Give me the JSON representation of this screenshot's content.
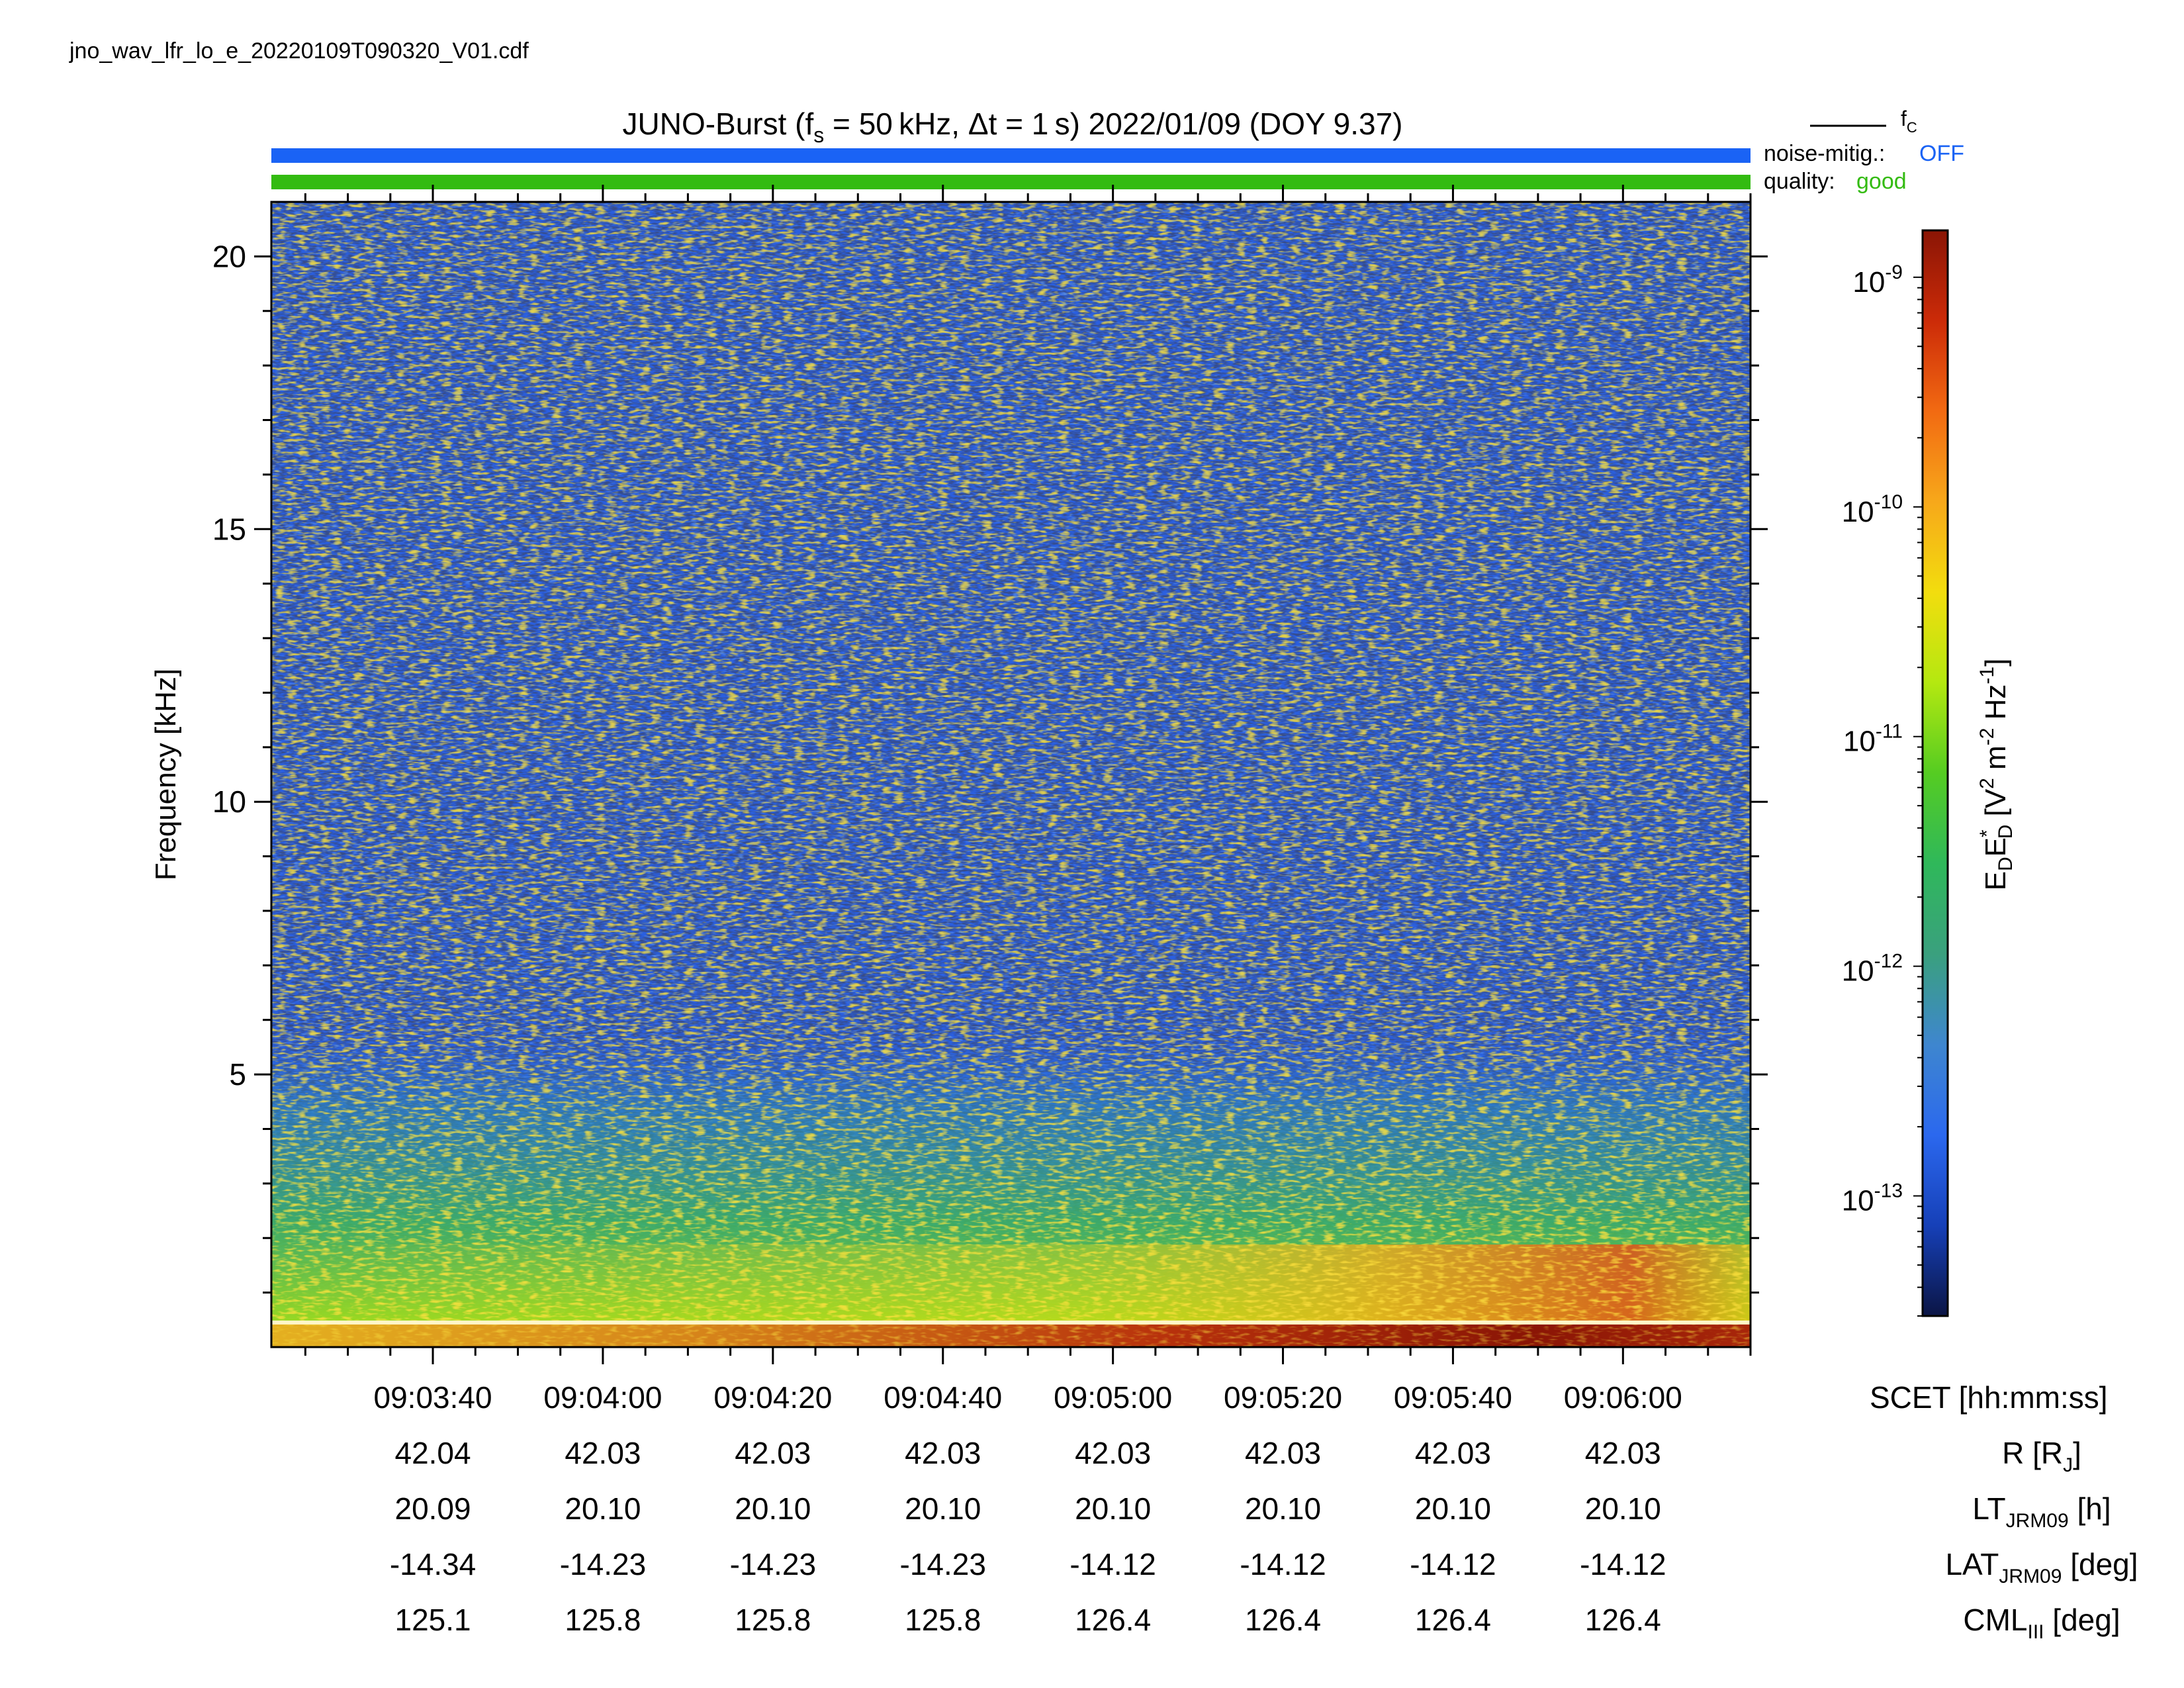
{
  "filename": "jno_wav_lfr_lo_e_20220109T090320_V01.cdf",
  "title": {
    "prefix": "JUNO-Burst (f",
    "fs_sub": "s",
    "middle": " = 50 kHz, Δt = 1 s)  2022/01/09 (DOY 9.37)"
  },
  "legend": {
    "fc_label": "f",
    "fc_sub": "C",
    "noise_label": "noise-mitig.:",
    "noise_value": "OFF",
    "noise_color": "#1a63f5",
    "quality_label": "quality:",
    "quality_value": "good",
    "quality_color": "#33bb11"
  },
  "chart_data": {
    "type": "heatmap",
    "x_axis": {
      "label": "SCET [hh:mm:ss]",
      "range": [
        "09:03:21",
        "09:06:15"
      ],
      "ticks": [
        "09:03:40",
        "09:04:00",
        "09:04:20",
        "09:04:40",
        "09:05:00",
        "09:05:20",
        "09:05:40",
        "09:06:00"
      ]
    },
    "y_axis": {
      "label": "Frequency [kHz]",
      "range": [
        0,
        21
      ],
      "ticks": [
        "20",
        "15",
        "10",
        "5"
      ]
    },
    "ephemeris_rows": [
      {
        "label": "R [R",
        "sub": "J",
        "suffix": "]",
        "values": [
          "42.04",
          "42.03",
          "42.03",
          "42.03",
          "42.03",
          "42.03",
          "42.03",
          "42.03"
        ]
      },
      {
        "label": "LT",
        "sub": "JRM09",
        "suffix": " [h]",
        "values": [
          "20.09",
          "20.10",
          "20.10",
          "20.10",
          "20.10",
          "20.10",
          "20.10",
          "20.10"
        ]
      },
      {
        "label": "LAT",
        "sub": "JRM09",
        "suffix": " [deg]",
        "values": [
          "-14.34",
          "-14.23",
          "-14.23",
          "-14.23",
          "-14.12",
          "-14.12",
          "-14.12",
          "-14.12"
        ]
      },
      {
        "label": "CML",
        "sub": "III",
        "suffix": " [deg]",
        "values": [
          "125.1",
          "125.8",
          "125.8",
          "125.8",
          "126.4",
          "126.4",
          "126.4",
          "126.4"
        ]
      }
    ],
    "colorbar": {
      "scale": "log",
      "range": [
        "3e-14",
        "1.6e-9"
      ],
      "ticks": [
        {
          "base": "10",
          "exp": "-9",
          "value": 1e-09
        },
        {
          "base": "10",
          "exp": "-10",
          "value": 1e-10
        },
        {
          "base": "10",
          "exp": "-11",
          "value": 1e-11
        },
        {
          "base": "10",
          "exp": "-12",
          "value": 1e-12
        },
        {
          "base": "10",
          "exp": "-13",
          "value": 1e-13
        }
      ],
      "colormap": [
        "#0b1545",
        "#1640b8",
        "#2b68ee",
        "#3e86cf",
        "#3aa07e",
        "#2fb85a",
        "#55cc22",
        "#b4e810",
        "#f2dd0e",
        "#f7a81a",
        "#f26a12",
        "#cc2b08",
        "#8a1505"
      ]
    },
    "fc_line_khz": 0.45,
    "description_note": "Spectrogram: broadband noise ~1e-13 above 3 kHz, enhanced emission below 3 kHz, strongest near 09:05:20-09:06:10 below 1 kHz"
  }
}
